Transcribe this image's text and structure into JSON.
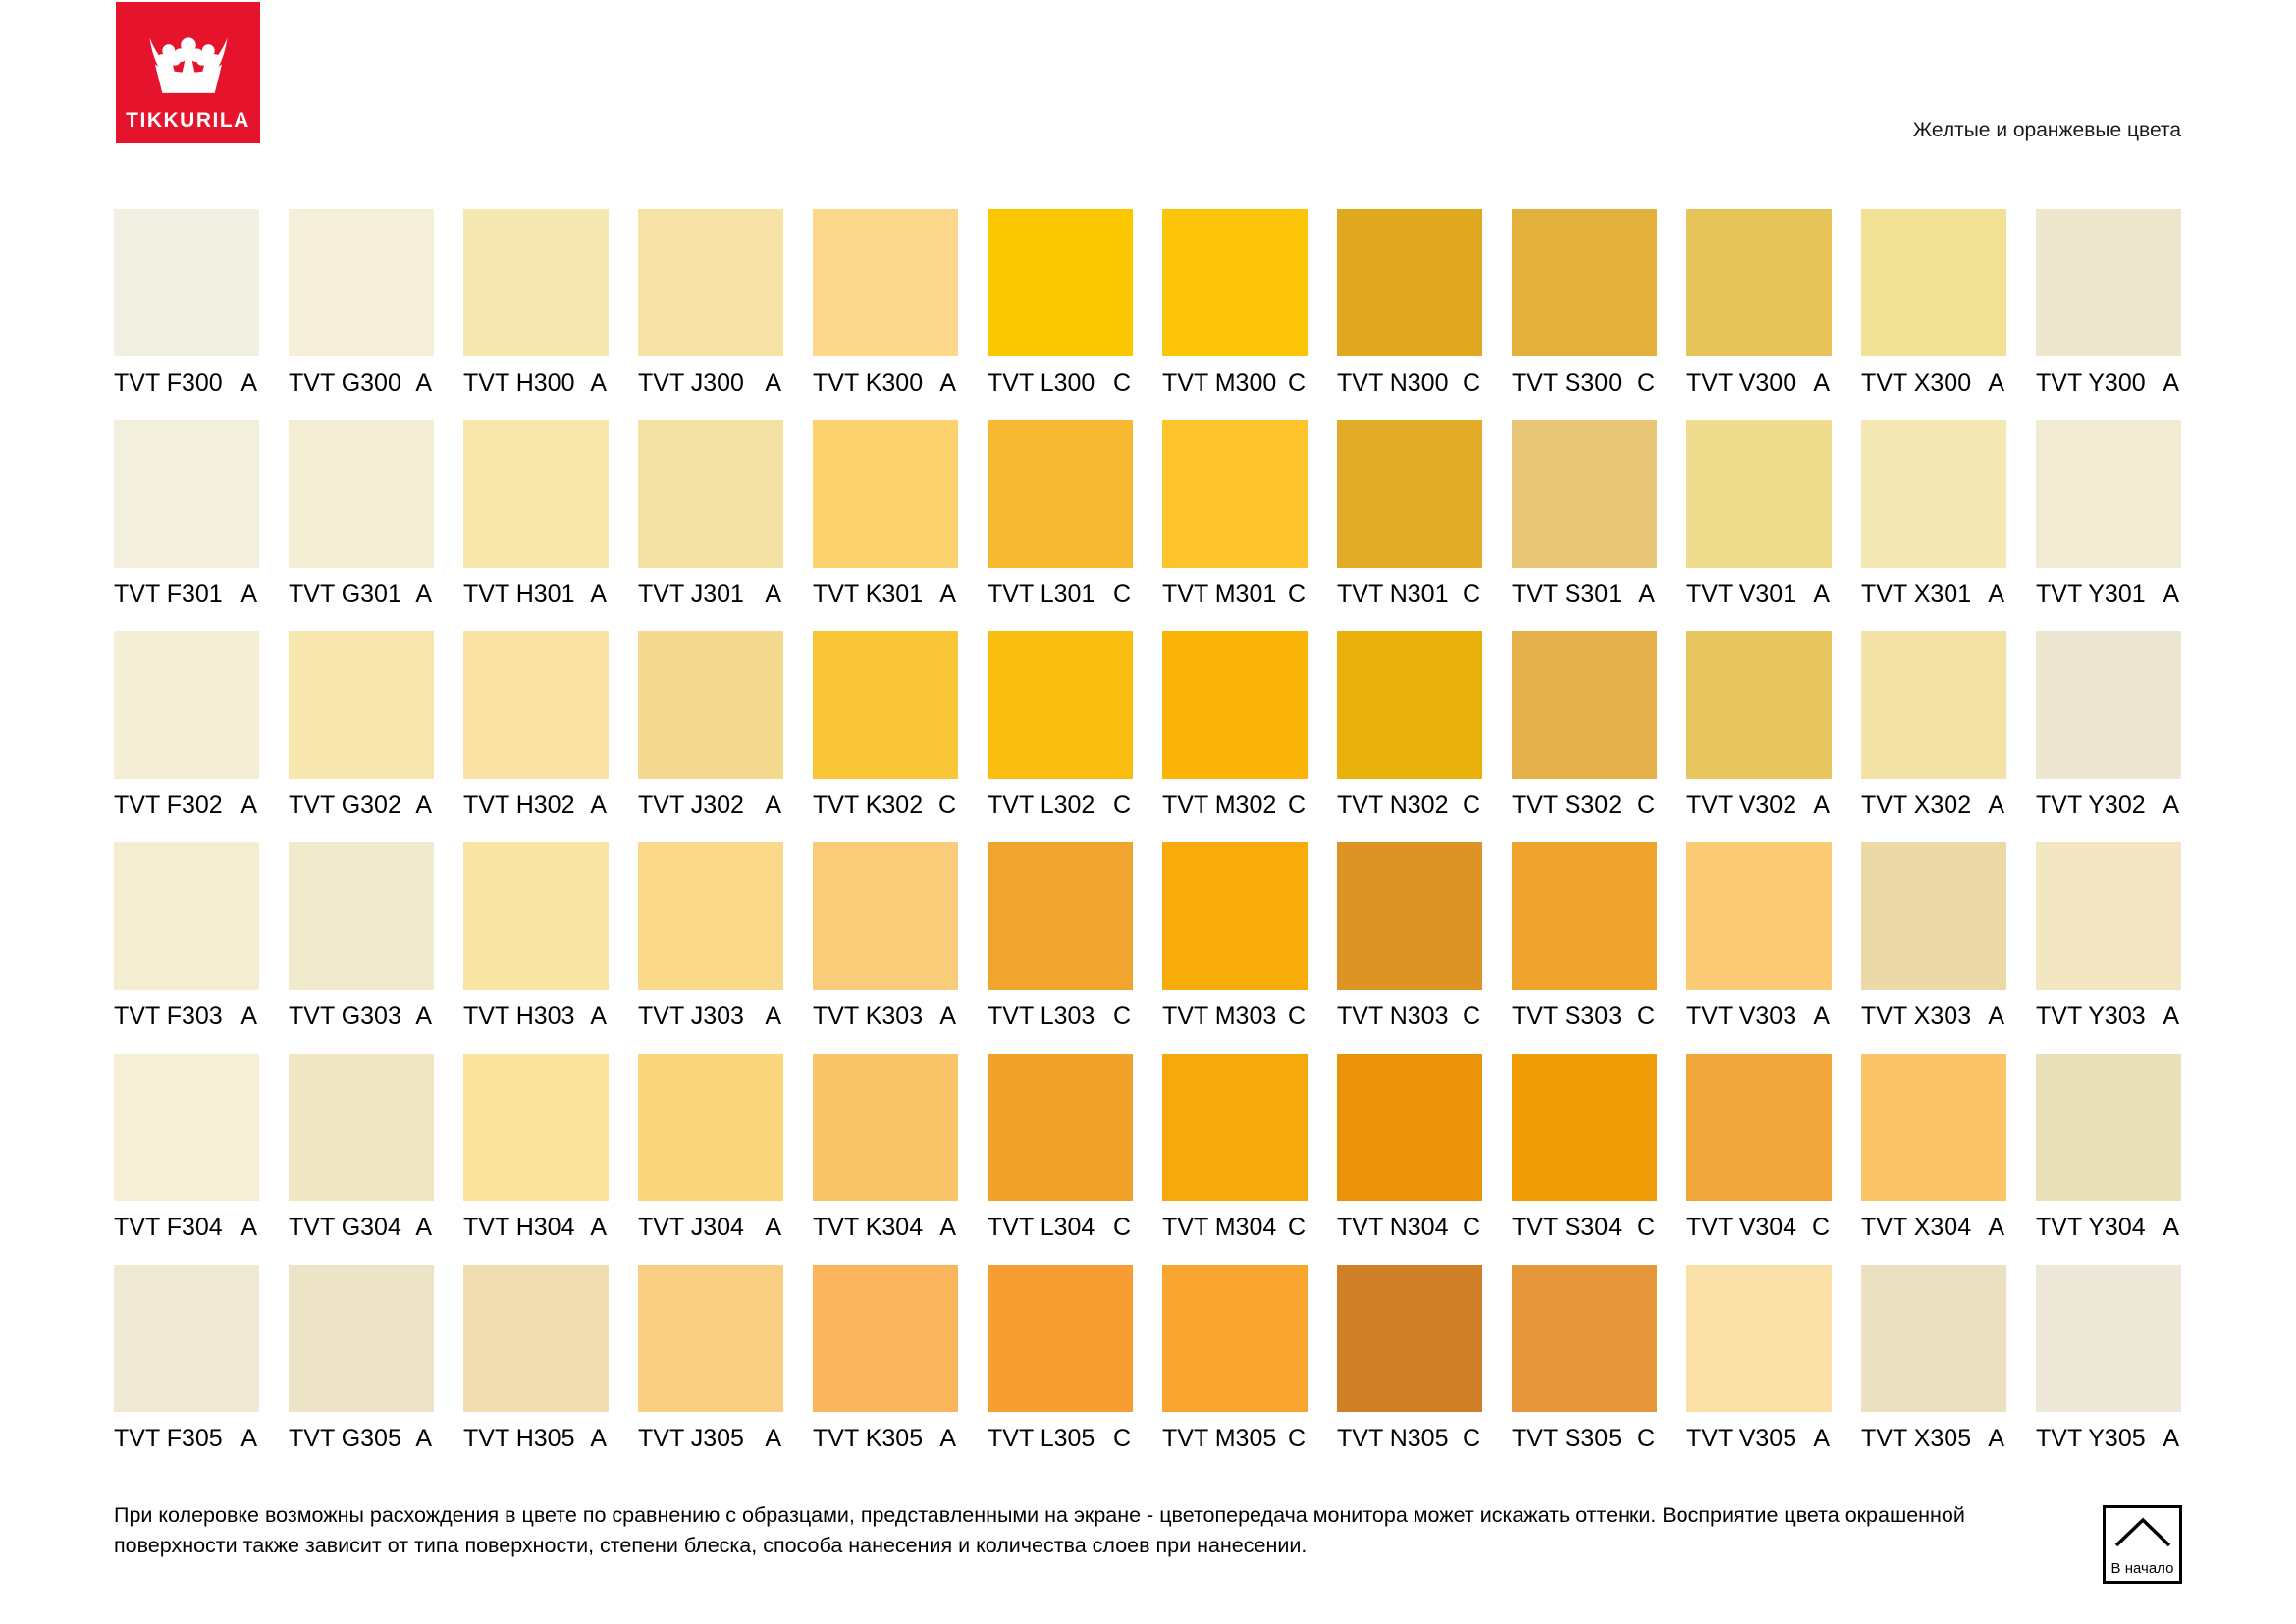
{
  "logo": {
    "brand": "TIKKURILA",
    "red": "#E5142C",
    "icon": "crown-icon"
  },
  "header": {
    "title": "Желтые и оранжевые цвета"
  },
  "palette": {
    "rows": [
      {
        "swatches": [
          {
            "code": "TVT F300",
            "type": "A",
            "color": "#F2F0E2"
          },
          {
            "code": "TVT G300",
            "type": "A",
            "color": "#F5EFD9"
          },
          {
            "code": "TVT H300",
            "type": "A",
            "color": "#F6E8B1"
          },
          {
            "code": "TVT J300",
            "type": "A",
            "color": "#F7E3A6"
          },
          {
            "code": "TVT K300",
            "type": "A",
            "color": "#FBD88C"
          },
          {
            "code": "TVT L300",
            "type": "C",
            "color": "#FBC800"
          },
          {
            "code": "TVT M300",
            "type": "C",
            "color": "#FCC50A"
          },
          {
            "code": "TVT N300",
            "type": "C",
            "color": "#E0A81E"
          },
          {
            "code": "TVT S300",
            "type": "C",
            "color": "#E4B23C"
          },
          {
            "code": "TVT V300",
            "type": "A",
            "color": "#E6C459"
          },
          {
            "code": "TVT X300",
            "type": "A",
            "color": "#F0E194"
          },
          {
            "code": "TVT Y300",
            "type": "A",
            "color": "#EEE7CE"
          }
        ]
      },
      {
        "swatches": [
          {
            "code": "TVT F301",
            "type": "A",
            "color": "#F2EFDD"
          },
          {
            "code": "TVT G301",
            "type": "A",
            "color": "#F2EDD3"
          },
          {
            "code": "TVT H301",
            "type": "A",
            "color": "#F8E8AC"
          },
          {
            "code": "TVT J301",
            "type": "A",
            "color": "#F3E2A3"
          },
          {
            "code": "TVT K301",
            "type": "A",
            "color": "#FBD26E"
          },
          {
            "code": "TVT L301",
            "type": "C",
            "color": "#F6B931"
          },
          {
            "code": "TVT M301",
            "type": "C",
            "color": "#FDC32B"
          },
          {
            "code": "TVT N301",
            "type": "C",
            "color": "#E3AC28"
          },
          {
            "code": "TVT S301",
            "type": "A",
            "color": "#E8C878"
          },
          {
            "code": "TVT V301",
            "type": "A",
            "color": "#EFDD8D"
          },
          {
            "code": "TVT X301",
            "type": "A",
            "color": "#F4E8B4"
          },
          {
            "code": "TVT Y301",
            "type": "A",
            "color": "#F1EBD3"
          }
        ]
      },
      {
        "swatches": [
          {
            "code": "TVT F302",
            "type": "A",
            "color": "#F4EED4"
          },
          {
            "code": "TVT G302",
            "type": "A",
            "color": "#F7E6AE"
          },
          {
            "code": "TVT H302",
            "type": "A",
            "color": "#F9E1A1"
          },
          {
            "code": "TVT J302",
            "type": "A",
            "color": "#F4D98E"
          },
          {
            "code": "TVT K302",
            "type": "C",
            "color": "#F8C637"
          },
          {
            "code": "TVT L302",
            "type": "C",
            "color": "#F9BE0F"
          },
          {
            "code": "TVT M302",
            "type": "C",
            "color": "#F9B407"
          },
          {
            "code": "TVT N302",
            "type": "C",
            "color": "#EAB10C"
          },
          {
            "code": "TVT S302",
            "type": "C",
            "color": "#E4B04A"
          },
          {
            "code": "TVT V302",
            "type": "A",
            "color": "#E8C65F"
          },
          {
            "code": "TVT X302",
            "type": "A",
            "color": "#F2E2A6"
          },
          {
            "code": "TVT Y302",
            "type": "A",
            "color": "#EDE6D0"
          }
        ]
      },
      {
        "swatches": [
          {
            "code": "TVT F303",
            "type": "A",
            "color": "#F5EDD2"
          },
          {
            "code": "TVT G303",
            "type": "A",
            "color": "#F2EACC"
          },
          {
            "code": "TVT H303",
            "type": "A",
            "color": "#FBE5A5"
          },
          {
            "code": "TVT J303",
            "type": "A",
            "color": "#FBD98B"
          },
          {
            "code": "TVT K303",
            "type": "A",
            "color": "#FACB79"
          },
          {
            "code": "TVT L303",
            "type": "C",
            "color": "#F0A62E"
          },
          {
            "code": "TVT M303",
            "type": "C",
            "color": "#F7AC0B"
          },
          {
            "code": "TVT N303",
            "type": "C",
            "color": "#DE9425"
          },
          {
            "code": "TVT S303",
            "type": "C",
            "color": "#EEA42D"
          },
          {
            "code": "TVT V303",
            "type": "A",
            "color": "#FBCA75"
          },
          {
            "code": "TVT X303",
            "type": "A",
            "color": "#EBD9A8"
          },
          {
            "code": "TVT Y303",
            "type": "A",
            "color": "#F3E7C3"
          }
        ]
      },
      {
        "swatches": [
          {
            "code": "TVT F304",
            "type": "A",
            "color": "#F6EFD5"
          },
          {
            "code": "TVT G304",
            "type": "A",
            "color": "#F2E7C3"
          },
          {
            "code": "TVT H304",
            "type": "A",
            "color": "#FCE39C"
          },
          {
            "code": "TVT J304",
            "type": "A",
            "color": "#FBD67D"
          },
          {
            "code": "TVT K304",
            "type": "A",
            "color": "#FAC468"
          },
          {
            "code": "TVT L304",
            "type": "C",
            "color": "#F2A229"
          },
          {
            "code": "TVT M304",
            "type": "C",
            "color": "#F5A90D"
          },
          {
            "code": "TVT N304",
            "type": "C",
            "color": "#EC9409"
          },
          {
            "code": "TVT S304",
            "type": "C",
            "color": "#F09C04"
          },
          {
            "code": "TVT V304",
            "type": "C",
            "color": "#F0A63A"
          },
          {
            "code": "TVT X304",
            "type": "A",
            "color": "#FCC469"
          },
          {
            "code": "TVT Y304",
            "type": "A",
            "color": "#EAE0B8"
          }
        ]
      },
      {
        "swatches": [
          {
            "code": "TVT F305",
            "type": "A",
            "color": "#F0E9D3"
          },
          {
            "code": "TVT G305",
            "type": "A",
            "color": "#EDE3C6"
          },
          {
            "code": "TVT H305",
            "type": "A",
            "color": "#F0DDB0"
          },
          {
            "code": "TVT J305",
            "type": "A",
            "color": "#F8CE82"
          },
          {
            "code": "TVT K305",
            "type": "A",
            "color": "#FAB45C"
          },
          {
            "code": "TVT L305",
            "type": "C",
            "color": "#F79D32"
          },
          {
            "code": "TVT M305",
            "type": "C",
            "color": "#F9A631"
          },
          {
            "code": "TVT N305",
            "type": "C",
            "color": "#CE7F28"
          },
          {
            "code": "TVT S305",
            "type": "C",
            "color": "#E6973B"
          },
          {
            "code": "TVT V305",
            "type": "A",
            "color": "#FADFA7"
          },
          {
            "code": "TVT X305",
            "type": "A",
            "color": "#EBE1C1"
          },
          {
            "code": "TVT Y305",
            "type": "A",
            "color": "#EDE8D8"
          }
        ]
      }
    ]
  },
  "footer": {
    "lines": [
      "При колеровке возможны расхождения в цвете по сравнению с образцами, представленными на экране - цветопередача монитора может искажать оттенки. Восприятие цвета окрашенной",
      "поверхности также зависит от типа поверхности, степени блеска, способа нанесения и количества слоев при нанесении."
    ],
    "back_button": {
      "label": "В начало",
      "icon": "chevron-up-icon"
    }
  }
}
